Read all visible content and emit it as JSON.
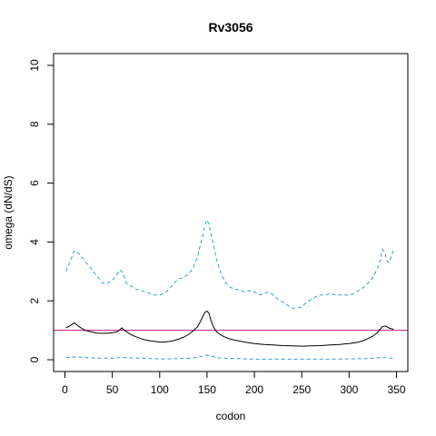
{
  "chart_data": {
    "type": "line",
    "title": "Rv3056",
    "xlabel": "codon",
    "ylabel": "omega (dN/dS)",
    "xlim": [
      -12,
      362
    ],
    "ylim": [
      -0.4,
      10.4
    ],
    "xticks": [
      0,
      50,
      100,
      150,
      200,
      250,
      300,
      350
    ],
    "yticks": [
      0,
      2,
      4,
      6,
      8,
      10
    ],
    "reference_line": {
      "y": 1,
      "color": "#c71585"
    },
    "grid": false,
    "series": [
      {
        "role": "estimate",
        "style": "solid",
        "color": "#000000",
        "x": [
          1,
          5,
          10,
          15,
          20,
          25,
          30,
          35,
          40,
          45,
          50,
          55,
          58,
          60,
          62,
          65,
          70,
          75,
          80,
          85,
          90,
          95,
          100,
          105,
          110,
          115,
          120,
          125,
          130,
          135,
          140,
          143,
          146,
          148,
          150,
          152,
          154,
          157,
          160,
          165,
          170,
          175,
          180,
          190,
          200,
          210,
          220,
          230,
          240,
          250,
          260,
          270,
          280,
          290,
          300,
          310,
          315,
          320,
          325,
          330,
          333,
          335,
          338,
          340,
          342,
          345,
          347
        ],
        "y": [
          1.08,
          1.15,
          1.25,
          1.12,
          1.02,
          0.97,
          0.93,
          0.9,
          0.9,
          0.9,
          0.92,
          0.95,
          1.02,
          1.08,
          1.02,
          0.95,
          0.85,
          0.78,
          0.72,
          0.67,
          0.64,
          0.62,
          0.6,
          0.6,
          0.62,
          0.65,
          0.7,
          0.76,
          0.85,
          0.97,
          1.12,
          1.3,
          1.5,
          1.62,
          1.65,
          1.58,
          1.35,
          1.1,
          0.95,
          0.83,
          0.75,
          0.7,
          0.66,
          0.6,
          0.55,
          0.52,
          0.5,
          0.48,
          0.47,
          0.46,
          0.47,
          0.48,
          0.5,
          0.52,
          0.55,
          0.6,
          0.65,
          0.72,
          0.8,
          0.92,
          1.05,
          1.12,
          1.15,
          1.12,
          1.08,
          1.05,
          1.03
        ]
      },
      {
        "role": "upper",
        "style": "dashed",
        "color": "#2f9bea",
        "x": [
          1,
          5,
          10,
          15,
          20,
          25,
          30,
          35,
          40,
          45,
          50,
          55,
          58,
          60,
          62,
          65,
          70,
          75,
          80,
          85,
          90,
          95,
          100,
          105,
          110,
          115,
          120,
          125,
          130,
          135,
          140,
          143,
          146,
          148,
          150,
          152,
          154,
          157,
          160,
          165,
          170,
          175,
          180,
          185,
          190,
          195,
          200,
          205,
          210,
          215,
          220,
          225,
          230,
          235,
          240,
          245,
          250,
          255,
          260,
          265,
          270,
          275,
          280,
          285,
          290,
          295,
          300,
          305,
          310,
          315,
          320,
          325,
          330,
          333,
          335,
          338,
          340,
          342,
          345,
          347
        ],
        "y": [
          3.0,
          3.3,
          3.7,
          3.6,
          3.4,
          3.2,
          3.0,
          2.8,
          2.6,
          2.6,
          2.7,
          2.9,
          3.05,
          3.0,
          2.85,
          2.6,
          2.5,
          2.4,
          2.35,
          2.3,
          2.25,
          2.2,
          2.2,
          2.25,
          2.4,
          2.6,
          2.75,
          2.8,
          2.9,
          3.1,
          3.5,
          3.9,
          4.3,
          4.6,
          4.75,
          4.6,
          4.3,
          3.9,
          3.4,
          2.9,
          2.6,
          2.45,
          2.4,
          2.35,
          2.3,
          2.35,
          2.3,
          2.2,
          2.25,
          2.3,
          2.2,
          2.05,
          1.95,
          1.85,
          1.75,
          1.75,
          1.8,
          1.95,
          2.05,
          2.15,
          2.2,
          2.2,
          2.25,
          2.2,
          2.2,
          2.2,
          2.2,
          2.25,
          2.35,
          2.45,
          2.6,
          2.8,
          3.1,
          3.4,
          3.75,
          3.6,
          3.35,
          3.3,
          3.55,
          3.75
        ]
      },
      {
        "role": "lower",
        "style": "dashed",
        "color": "#2f9bea",
        "x": [
          1,
          10,
          20,
          30,
          40,
          50,
          60,
          70,
          80,
          90,
          100,
          110,
          120,
          130,
          140,
          145,
          150,
          155,
          160,
          170,
          180,
          190,
          200,
          220,
          240,
          260,
          280,
          300,
          320,
          330,
          335,
          340,
          345,
          347
        ],
        "y": [
          0.07,
          0.1,
          0.08,
          0.06,
          0.05,
          0.05,
          0.08,
          0.06,
          0.05,
          0.04,
          0.03,
          0.03,
          0.04,
          0.05,
          0.08,
          0.12,
          0.16,
          0.12,
          0.07,
          0.05,
          0.04,
          0.03,
          0.02,
          0.02,
          0.02,
          0.02,
          0.02,
          0.03,
          0.04,
          0.06,
          0.09,
          0.07,
          0.05,
          0.04
        ]
      }
    ]
  }
}
